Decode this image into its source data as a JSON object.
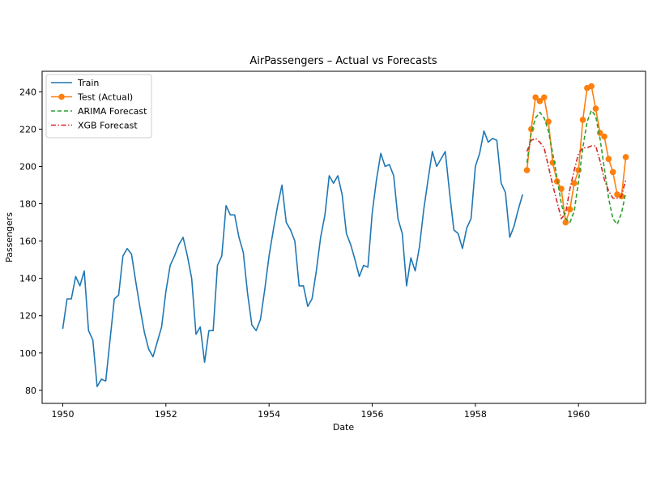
{
  "chart_data": {
    "type": "line",
    "title": "AirPassengers – Actual vs Forecasts",
    "xlabel": "Date",
    "ylabel": "Passengers",
    "xlim": [
      1949.6,
      1961.3
    ],
    "ylim": [
      73,
      251
    ],
    "xticks": [
      1950,
      1952,
      1954,
      1956,
      1958,
      1960
    ],
    "yticks": [
      80,
      100,
      120,
      140,
      160,
      180,
      200,
      220,
      240
    ],
    "grid": false,
    "legend_position": "top-left",
    "series": [
      {
        "name": "Train",
        "color": "#1f77b4",
        "style": "solid",
        "marker": "none",
        "x_start": 1950.0,
        "x_step": 0.08333,
        "values": [
          113,
          129,
          129,
          141,
          136,
          144,
          112,
          107,
          82,
          86,
          85,
          107,
          129,
          131,
          152,
          156,
          153,
          138,
          124,
          111,
          102,
          98,
          106,
          114,
          133,
          147,
          152,
          158,
          162,
          152,
          140,
          110,
          114,
          95,
          112,
          112,
          147,
          152,
          179,
          174,
          174,
          162,
          154,
          132,
          115,
          112,
          118,
          134,
          152,
          166,
          179,
          190,
          170,
          166,
          160,
          136,
          136,
          125,
          129,
          144,
          162,
          174,
          195,
          191,
          195,
          185,
          164,
          158,
          150,
          141,
          147,
          146,
          175,
          193,
          207,
          200,
          201,
          195,
          172,
          164,
          136,
          151,
          144,
          157,
          177,
          193,
          208,
          200,
          204,
          208,
          186,
          166,
          164,
          156,
          167,
          172,
          200,
          207,
          219,
          213,
          215,
          214,
          191,
          186,
          162,
          168,
          177,
          185
        ]
      },
      {
        "name": "Test (Actual)",
        "color": "#ff7f0e",
        "style": "solid",
        "marker": "circle",
        "x_start": 1959.0,
        "x_step": 0.08333,
        "values": [
          198,
          220,
          237,
          235,
          237,
          224,
          202,
          192,
          188,
          170,
          177,
          191,
          198,
          225,
          242,
          243,
          231,
          218,
          216,
          204,
          197,
          185,
          184,
          205
        ]
      },
      {
        "name": "ARIMA Forecast",
        "color": "#2ca02c",
        "style": "dashed",
        "marker": "none",
        "x_start": 1959.0,
        "x_step": 0.08333,
        "values": [
          202,
          218,
          226,
          229,
          226,
          219,
          207,
          194,
          180,
          172,
          170,
          176,
          192,
          210,
          224,
          230,
          227,
          215,
          199,
          183,
          172,
          169,
          175,
          186
        ]
      },
      {
        "name": "XGB Forecast",
        "color": "#d62728",
        "style": "dashdot",
        "marker": "none",
        "x_start": 1959.0,
        "x_step": 0.08333,
        "values": [
          208,
          214,
          215,
          213,
          210,
          200,
          190,
          181,
          172,
          175,
          188,
          198,
          207,
          210,
          210,
          211,
          211,
          203,
          193,
          187,
          183,
          183,
          184,
          193
        ]
      }
    ]
  }
}
